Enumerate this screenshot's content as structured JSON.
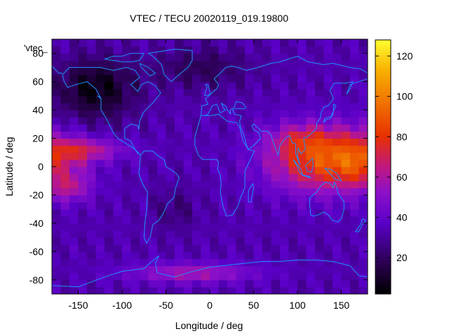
{
  "chart_data": {
    "type": "heatmap",
    "title": "VTEC / TECU 20020119_019.19800",
    "xlabel": "Longitude / deg",
    "ylabel": "Latitude / deg",
    "key_label": "'vtec_",
    "xlim": [
      -180,
      180
    ],
    "ylim": [
      -90,
      90
    ],
    "x_ticks": [
      -150,
      -100,
      -50,
      0,
      50,
      100,
      150
    ],
    "y_ticks": [
      -80,
      -60,
      -40,
      -20,
      0,
      20,
      40,
      60,
      80
    ],
    "colorbar": {
      "min": 2,
      "max": 128,
      "ticks": [
        20,
        40,
        60,
        80,
        100,
        120
      ]
    },
    "grid": false,
    "colors": {
      "coastline": "#1e90ff",
      "axis": "#000000"
    },
    "vtec_field_description": [
      {
        "region": "equatorial Asia-Pacific",
        "lon": [
          60,
          180
        ],
        "lat": [
          -35,
          30
        ],
        "vtec": 80
      },
      {
        "region": "east Pacific equatorial band",
        "lon": [
          -180,
          -110
        ],
        "lat": [
          -25,
          25
        ],
        "vtec": 65
      },
      {
        "region": "southern ring",
        "lon": [
          -100,
          100
        ],
        "lat": [
          -85,
          -65
        ],
        "vtec": 60
      },
      {
        "region": "north Pacific/Canada",
        "lon": [
          -170,
          -60
        ],
        "lat": [
          35,
          80
        ],
        "vtec": 8
      },
      {
        "region": "background",
        "lon": [
          -180,
          180
        ],
        "lat": [
          -90,
          90
        ],
        "vtec": 35
      }
    ]
  }
}
